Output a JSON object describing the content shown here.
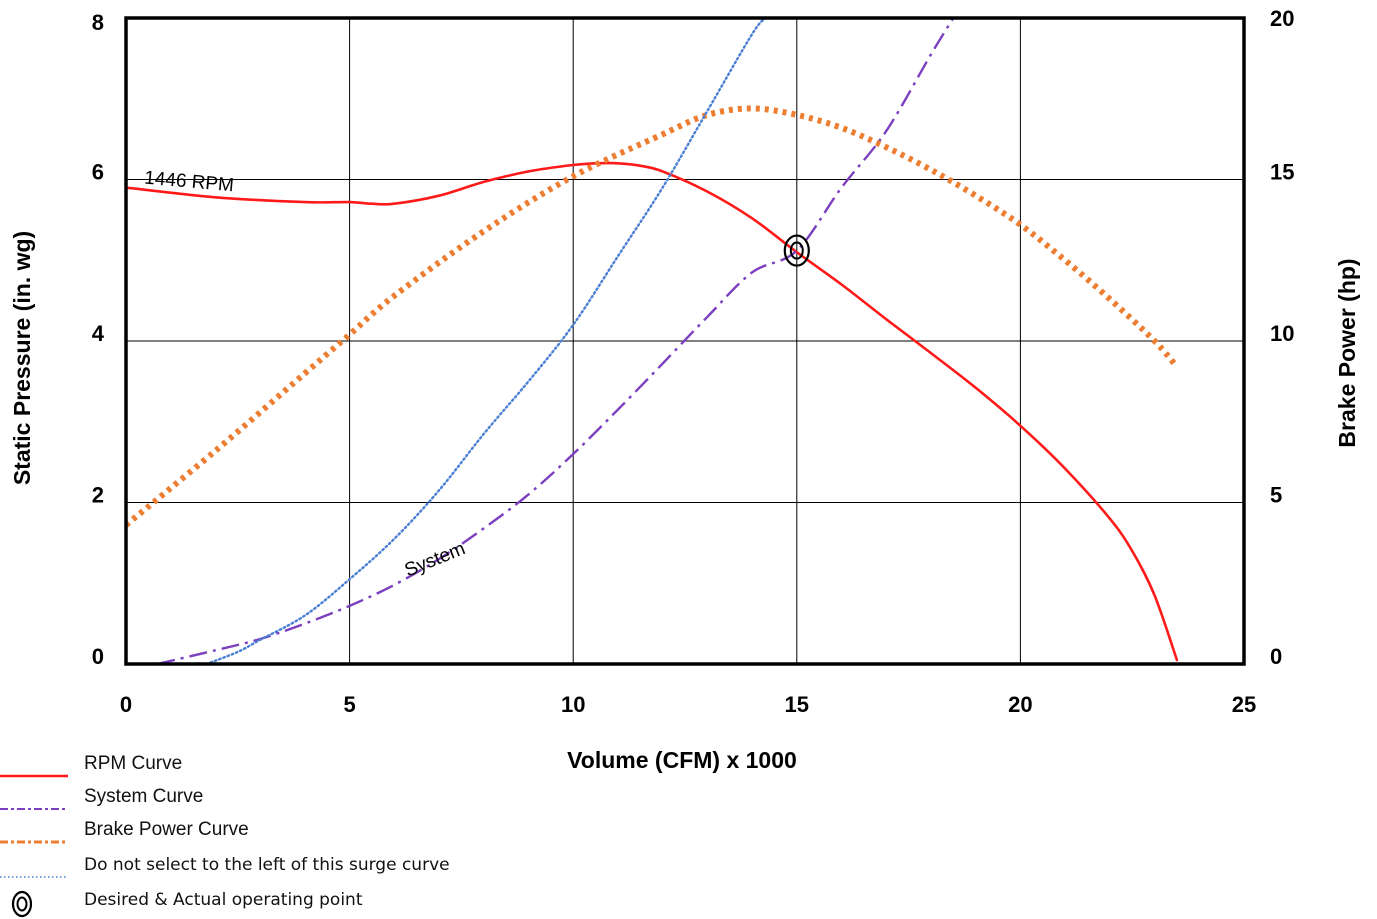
{
  "chart_data": {
    "type": "line",
    "xlabel": "Volume (CFM) x 1000",
    "ylabel_left": "Static Pressure (in. wg)",
    "ylabel_right": "Brake Power (hp)",
    "xlim": [
      0,
      25
    ],
    "ylim_left": [
      0,
      8
    ],
    "ylim_right": [
      0,
      20
    ],
    "x_ticks": [
      "0",
      "5",
      "10",
      "15",
      "20",
      "25"
    ],
    "y_left_ticks": [
      "0",
      "2",
      "4",
      "6",
      "8"
    ],
    "y_right_ticks": [
      "0",
      "5",
      "10",
      "15",
      "20"
    ],
    "grid": true,
    "colors": {
      "rpm": "#ff1a1a",
      "system": "#7b3fbf",
      "brake": "#ed7d31",
      "surge": "#4a7fd4"
    },
    "series": [
      {
        "name": "RPM Curve",
        "axis": "left",
        "x": [
          0,
          2,
          4,
          5,
          5.5,
          6,
          7,
          8,
          9,
          10,
          10.5,
          11,
          11.5,
          12,
          13,
          14,
          15,
          16,
          17,
          18,
          19,
          20,
          21,
          22,
          22.5,
          23,
          23.5
        ],
        "y": [
          5.9,
          5.78,
          5.72,
          5.72,
          5.7,
          5.7,
          5.8,
          5.97,
          6.1,
          6.18,
          6.2,
          6.2,
          6.17,
          6.1,
          5.85,
          5.52,
          5.1,
          4.7,
          4.27,
          3.85,
          3.42,
          2.95,
          2.42,
          1.8,
          1.4,
          0.85,
          0.05
        ]
      },
      {
        "name": "System Curve",
        "axis": "left",
        "x": [
          0.7,
          2,
          3,
          4,
          5,
          6,
          7,
          8,
          9,
          10,
          11,
          12,
          13,
          14,
          15,
          16,
          17,
          18,
          18.5
        ],
        "y": [
          0.0,
          0.17,
          0.31,
          0.5,
          0.72,
          0.98,
          1.3,
          1.68,
          2.1,
          2.6,
          3.15,
          3.72,
          4.3,
          4.85,
          5.12,
          5.9,
          6.6,
          7.55,
          8.0
        ]
      },
      {
        "name": "Brake Power Curve",
        "axis": "right",
        "x": [
          0,
          2,
          4,
          5,
          6,
          8,
          10,
          12,
          13,
          14,
          15,
          16,
          17,
          18,
          19,
          20,
          21,
          22,
          23,
          23.5
        ],
        "y": [
          4.3,
          6.6,
          9.0,
          10.2,
          11.4,
          13.4,
          15.1,
          16.4,
          17.0,
          17.2,
          17.0,
          16.6,
          16.0,
          15.3,
          14.5,
          13.6,
          12.5,
          11.3,
          10.0,
          9.2
        ]
      },
      {
        "name": "Do not select to the left of this surge curve",
        "axis": "left",
        "x": [
          1.8,
          2.5,
          3,
          4,
          5,
          6,
          7,
          8,
          9,
          10,
          11,
          12,
          13,
          14,
          14.3
        ],
        "y": [
          0.0,
          0.15,
          0.3,
          0.6,
          1.05,
          1.55,
          2.15,
          2.85,
          3.5,
          4.2,
          5.05,
          5.9,
          6.85,
          7.8,
          8.0
        ]
      }
    ],
    "annotations": [
      {
        "text": "1446 RPM",
        "x": 0.4,
        "y": 5.95,
        "axis": "left"
      },
      {
        "text": "System",
        "x": 6.3,
        "y": 1.08,
        "axis": "left"
      }
    ],
    "operating_point": {
      "x": 15,
      "y": 5.12
    },
    "legend": [
      {
        "label": "RPM Curve",
        "style": "solid",
        "color": "#ff1a1a"
      },
      {
        "label": "System Curve",
        "style": "dashdot",
        "color": "#7b3fbf"
      },
      {
        "label": "Brake Power Curve",
        "style": "dashdot",
        "color": "#ed7d31"
      },
      {
        "label": "Do not select to the left of this surge curve",
        "style": "dotted",
        "color": "#4a7fd4"
      },
      {
        "label": "Desired & Actual operating point",
        "style": "marker",
        "icon": "concentric-circle-icon"
      }
    ],
    "legend_placement": "bottom-left"
  }
}
